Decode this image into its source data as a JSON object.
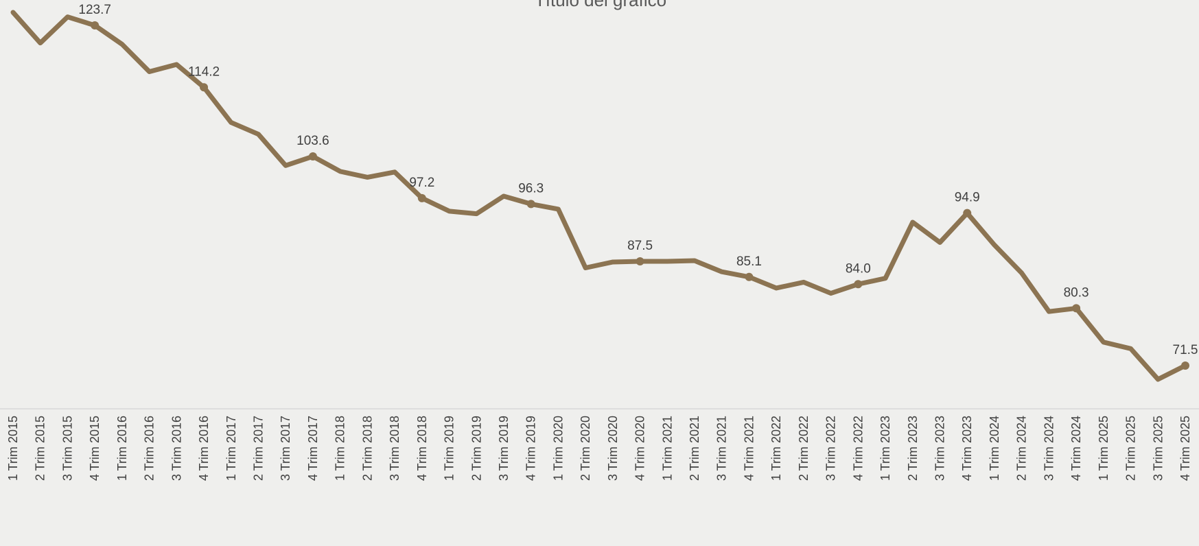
{
  "chart_data": {
    "type": "line",
    "title": "Título del gráfico",
    "categories": [
      "1 Trim 2015",
      "2 Trim 2015",
      "3 Trim 2015",
      "4 Trim 2015",
      "1 Trim 2016",
      "2 Trim 2016",
      "3 Trim 2016",
      "4 Trim 2016",
      "1 Trim 2017",
      "2 Trim 2017",
      "3 Trim 2017",
      "4 Trim 2017",
      "1 Trim 2018",
      "2 Trim 2018",
      "3 Trim 2018",
      "4 Trim 2018",
      "1 Trim 2019",
      "2 Trim 2019",
      "3 Trim 2019",
      "4 Trim 2019",
      "1 Trim 2020",
      "2 Trim 2020",
      "3 Trim 2020",
      "4 Trim 2020",
      "1 Trim 2021",
      "2 Trim 2021",
      "3 Trim 2021",
      "4 Trim 2021",
      "1 Trim 2022",
      "2 Trim 2022",
      "3 Trim 2022",
      "4 Trim 2022",
      "1 Trim 2023",
      "2 Trim 2023",
      "3 Trim 2023",
      "4 Trim 2023",
      "1 Trim 2024",
      "2 Trim 2024",
      "3 Trim 2024",
      "4 Trim 2024",
      "1 Trim 2025",
      "2 Trim 2025",
      "3 Trim 2025",
      "4 Trim 2025"
    ],
    "series": [
      {
        "color": "#8c7452",
        "values": [
          125.7,
          121.0,
          125.0,
          123.7,
          120.8,
          116.6,
          117.7,
          114.2,
          108.8,
          107.0,
          102.2,
          103.6,
          101.3,
          100.4,
          101.2,
          97.2,
          95.2,
          94.8,
          97.5,
          96.3,
          95.5,
          86.5,
          87.4,
          87.5,
          87.5,
          87.6,
          85.9,
          85.1,
          83.4,
          84.3,
          82.6,
          84.0,
          84.9,
          93.5,
          90.4,
          94.9,
          90.0,
          85.7,
          79.8,
          80.3,
          75.1,
          74.1,
          69.4,
          71.5
        ],
        "value_labels": [
          null,
          null,
          null,
          "123.7",
          null,
          null,
          null,
          "114.2",
          null,
          null,
          null,
          "103.6",
          null,
          null,
          null,
          "97.2",
          null,
          null,
          null,
          "96.3",
          null,
          null,
          null,
          "87.5",
          null,
          null,
          null,
          "85.1",
          null,
          null,
          null,
          "84.0",
          null,
          null,
          null,
          "94.9",
          null,
          null,
          null,
          "80.3",
          null,
          null,
          null,
          "71.5"
        ]
      }
    ]
  }
}
